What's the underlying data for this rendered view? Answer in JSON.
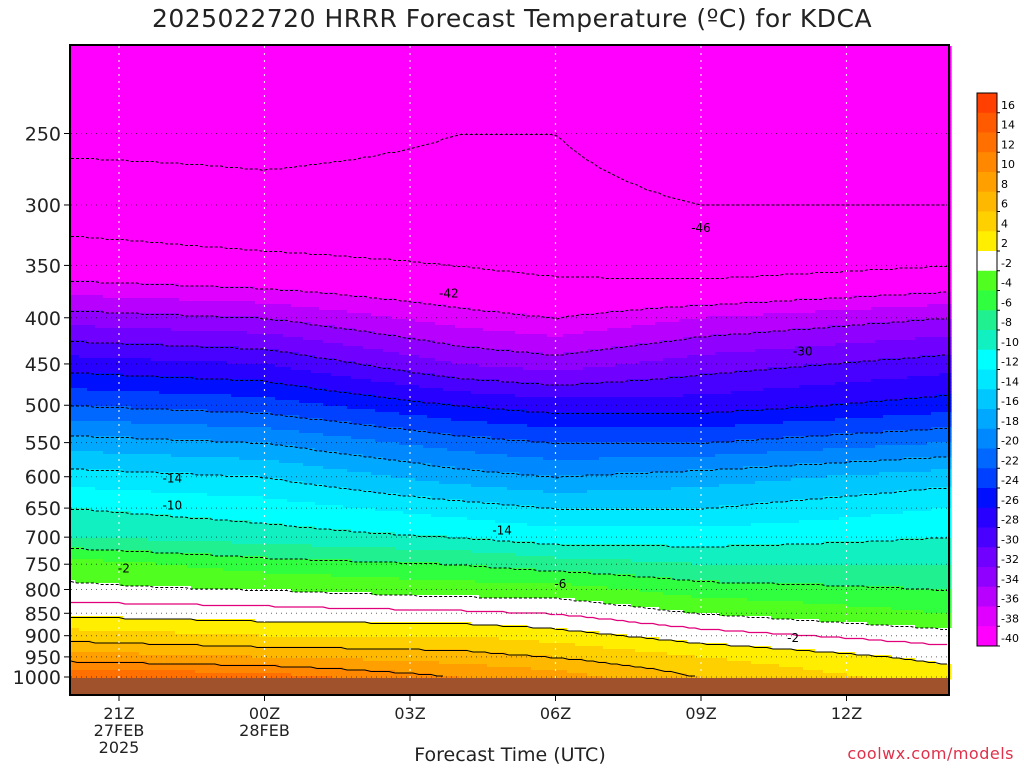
{
  "title": "2025022720 HRRR Forecast Temperature (ºC) for KDCA",
  "x_axis_title": "Forecast Time (UTC)",
  "credit": "coolwx.com/models",
  "chart_data": {
    "type": "heatmap",
    "title": "2025022720 HRRR Forecast Temperature (ºC) for KDCA",
    "xlabel": "Forecast Time (UTC)",
    "ylabel": "",
    "x_ticks": [
      {
        "hour": 1,
        "lines": [
          "21Z",
          "27FEB",
          "2025"
        ]
      },
      {
        "hour": 4,
        "lines": [
          "00Z",
          "28FEB"
        ]
      },
      {
        "hour": 7,
        "lines": [
          "03Z"
        ]
      },
      {
        "hour": 10,
        "lines": [
          "06Z"
        ]
      },
      {
        "hour": 13,
        "lines": [
          "09Z"
        ]
      },
      {
        "hour": 16,
        "lines": [
          "12Z"
        ]
      }
    ],
    "x_hours": [
      0,
      1,
      2,
      3,
      4,
      5,
      6,
      7,
      8,
      9,
      10,
      11,
      12,
      13,
      14,
      15,
      16,
      17,
      18
    ],
    "y_axis": {
      "scale": "log-pressure",
      "range_hpa": [
        200,
        1000
      ],
      "ticks": [
        250,
        300,
        350,
        400,
        450,
        500,
        550,
        600,
        650,
        700,
        750,
        800,
        850,
        900,
        950,
        1000
      ]
    },
    "colorbar": {
      "labels": [
        "16",
        "14",
        "12",
        "10",
        "8",
        "6",
        "4",
        "2",
        "-2",
        "-4",
        "-6",
        "-8",
        "-10",
        "-12",
        "-14",
        "-16",
        "-18",
        "-20",
        "-22",
        "-24",
        "-26",
        "-28",
        "-30",
        "-32",
        "-34",
        "-36",
        "-38",
        "-40"
      ],
      "colors": [
        "#ff4000",
        "#ff5a00",
        "#ff7000",
        "#ff8800",
        "#ffa000",
        "#ffb800",
        "#ffd000",
        "#ffee00",
        "#ffffff",
        "#50ff20",
        "#30ff40",
        "#20f090",
        "#10f0c0",
        "#00ffff",
        "#00e8ff",
        "#00c8ff",
        "#00a8ff",
        "#0088ff",
        "#0068ff",
        "#0040ff",
        "#0010ff",
        "#2800ff",
        "#4800ff",
        "#7000ff",
        "#9000ff",
        "#b800ff",
        "#e000ff",
        "#ff00ff"
      ]
    },
    "contour_labels": [
      {
        "text": "-46",
        "hour": 13.0,
        "hpa": 318
      },
      {
        "text": "-42",
        "hour": 7.8,
        "hpa": 376
      },
      {
        "text": "-30",
        "hour": 15.1,
        "hpa": 436
      },
      {
        "text": "-14",
        "hour": 2.1,
        "hpa": 603
      },
      {
        "text": "-10",
        "hour": 2.1,
        "hpa": 646
      },
      {
        "text": "-14",
        "hour": 8.9,
        "hpa": 688
      },
      {
        "text": "-6",
        "hour": 10.1,
        "hpa": 789
      },
      {
        "text": "-2",
        "hour": 1.1,
        "hpa": 758
      },
      {
        "text": "-2",
        "hour": 14.9,
        "hpa": 905
      }
    ],
    "temperature_profiles": [
      {
        "hour": 0,
        "levels_hpa": [
          1000,
          950,
          900,
          850,
          800,
          750,
          700,
          650,
          600,
          550,
          500,
          450,
          400,
          350,
          300,
          250,
          200
        ],
        "temps_c": [
          14,
          9,
          5,
          1.5,
          -1.5,
          -3,
          -8,
          -10,
          -13,
          -17,
          -22,
          -27,
          -33,
          -40,
          -44,
          -47,
          -47
        ]
      },
      {
        "hour": 4,
        "levels_hpa": [
          1000,
          950,
          900,
          850,
          800,
          750,
          700,
          650,
          600,
          550,
          500,
          450,
          400,
          350,
          300,
          250,
          200
        ],
        "temps_c": [
          13,
          8,
          4,
          1,
          -2,
          -5,
          -9,
          -11,
          -14,
          -18,
          -23,
          -28,
          -34,
          -41,
          -45,
          -47,
          -47
        ]
      },
      {
        "hour": 8,
        "levels_hpa": [
          1000,
          950,
          900,
          850,
          800,
          750,
          700,
          650,
          600,
          550,
          500,
          450,
          400,
          350,
          300,
          250,
          200
        ],
        "temps_c": [
          10,
          7,
          4,
          0.5,
          -3,
          -6,
          -10,
          -13,
          -17,
          -21,
          -26,
          -32,
          -37,
          -42,
          -45,
          -46,
          -46
        ]
      },
      {
        "hour": 10,
        "levels_hpa": [
          1000,
          950,
          900,
          850,
          800,
          750,
          700,
          650,
          600,
          550,
          500,
          450,
          400,
          350,
          300,
          250,
          200
        ],
        "temps_c": [
          9,
          6,
          3,
          0,
          -3,
          -7,
          -11,
          -14,
          -18,
          -22,
          -27,
          -33,
          -38,
          -43,
          -45,
          -46,
          -46
        ]
      },
      {
        "hour": 13,
        "levels_hpa": [
          1000,
          950,
          900,
          850,
          800,
          750,
          700,
          650,
          600,
          550,
          500,
          450,
          400,
          350,
          300,
          250,
          200
        ],
        "temps_c": [
          6,
          4,
          1,
          -2,
          -5,
          -8,
          -11,
          -14,
          -17,
          -22,
          -27,
          -31,
          -36,
          -44,
          -46,
          -48,
          -47
        ]
      },
      {
        "hour": 18,
        "levels_hpa": [
          1000,
          950,
          900,
          850,
          800,
          750,
          700,
          650,
          600,
          550,
          500,
          450,
          400,
          350,
          300,
          250,
          200
        ],
        "temps_c": [
          3,
          1.5,
          -1,
          -4,
          -6,
          -8,
          -10,
          -12,
          -15,
          -20,
          -25,
          -29,
          -34,
          -42,
          -46,
          -48,
          -47
        ]
      }
    ],
    "grid": true
  }
}
